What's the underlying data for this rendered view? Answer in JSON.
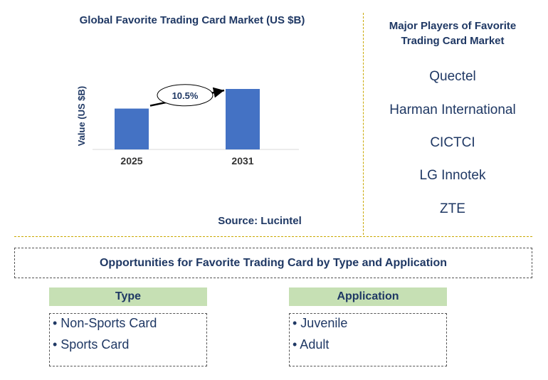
{
  "chart_data": {
    "type": "bar",
    "title": "Global Favorite Trading Card Market (US $B)",
    "categories": [
      "2025",
      "2031"
    ],
    "values": [
      1.0,
      1.48
    ],
    "ylabel": "Value (US $B)",
    "annotation": "10.5%",
    "bar_color": "#4472c4",
    "source": "Source: Lucintel"
  },
  "players": {
    "title": "Major Players of Favorite Trading Card Market",
    "items": [
      "Quectel",
      "Harman International",
      "CICTCI",
      "LG Innotek",
      "ZTE"
    ]
  },
  "opportunities": {
    "title": "Opportunities for Favorite Trading Card by Type and Application",
    "type": {
      "label": "Type",
      "items": [
        "• Non-Sports Card",
        "• Sports Card"
      ]
    },
    "application": {
      "label": "Application",
      "items": [
        "• Juvenile",
        "• Adult"
      ]
    }
  },
  "colors": {
    "heading": "#1f3864",
    "divider": "#c9a800",
    "segment_header": "#c6e0b4"
  }
}
